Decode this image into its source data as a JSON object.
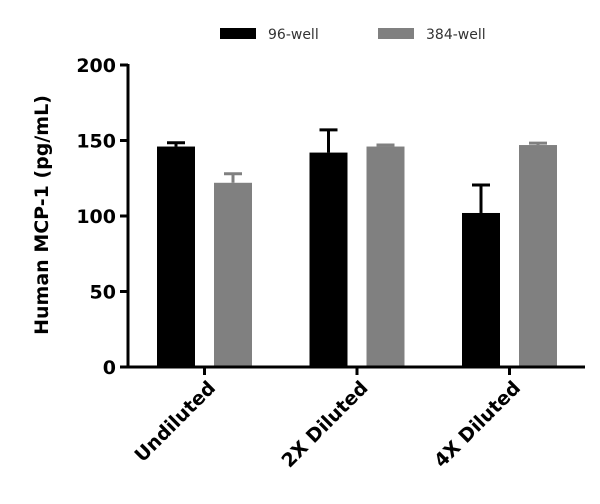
{
  "chart_data": {
    "type": "bar",
    "title": "",
    "xlabel": "",
    "ylabel": "Human MCP-1 (pg/mL)",
    "ylim": [
      0,
      200
    ],
    "yticks": [
      0,
      50,
      100,
      150,
      200
    ],
    "grid": false,
    "legend_position": "top",
    "categories": [
      "Undiluted",
      "2X Diluted",
      "4X Diluted"
    ],
    "series": [
      {
        "name": "96-well",
        "color": "#000000",
        "values": [
          146,
          142,
          102
        ],
        "errors": [
          2.5,
          15,
          18.5
        ]
      },
      {
        "name": "384-well",
        "color": "#808080",
        "values": [
          122,
          146,
          147
        ],
        "errors": [
          6,
          1,
          1.3
        ]
      }
    ]
  }
}
